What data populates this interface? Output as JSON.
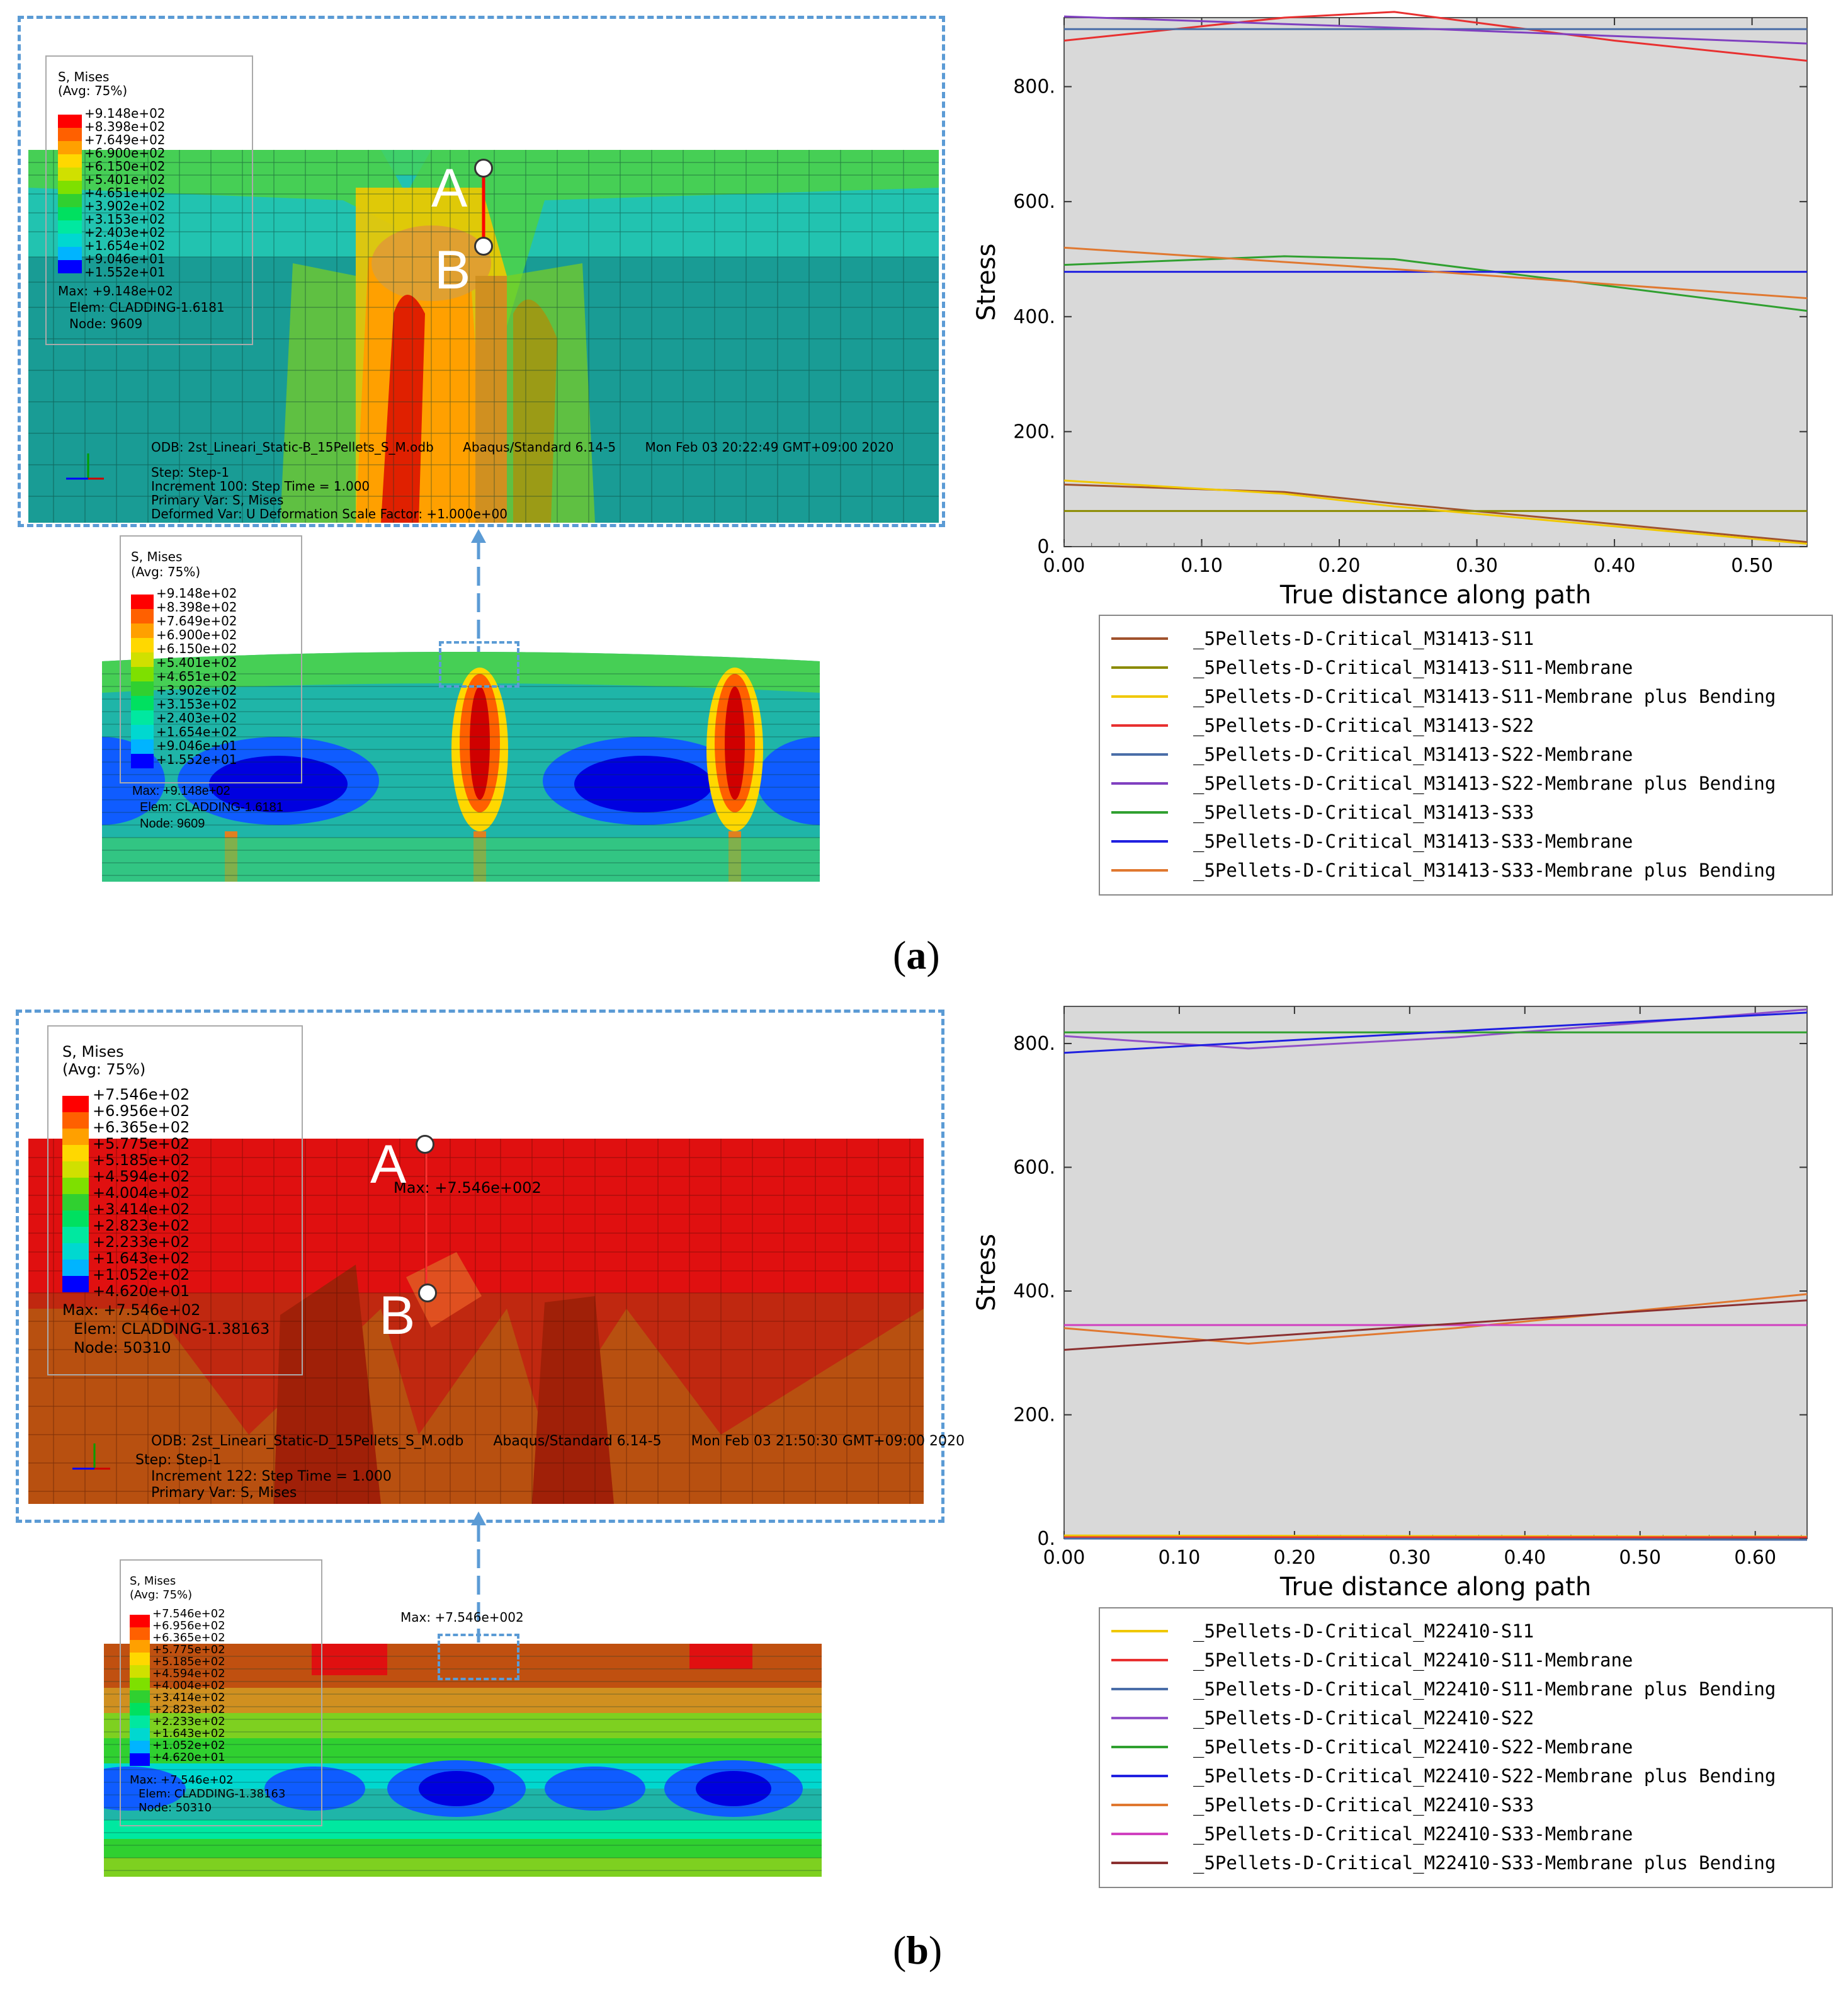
{
  "colors": {
    "contour": [
      "#0000ff",
      "#0f5cff",
      "#00b4ff",
      "#00d8d0",
      "#00e8a0",
      "#00e060",
      "#30d030",
      "#7ee000",
      "#d0e000",
      "#ffd800",
      "#ffa000",
      "#ff6000",
      "#ff0000"
    ],
    "dashed": "#5b9bd5",
    "plotbg": "#d9d9d9"
  },
  "panel_a": {
    "label": "(a)",
    "legend": {
      "title": "S, Mises",
      "avg": "(Avg: 75%)",
      "values": [
        "+9.148e+02",
        "+8.398e+02",
        "+7.649e+02",
        "+6.900e+02",
        "+6.150e+02",
        "+5.401e+02",
        "+4.651e+02",
        "+3.902e+02",
        "+3.153e+02",
        "+2.403e+02",
        "+1.654e+02",
        "+9.046e+01",
        "+1.552e+01"
      ],
      "max": "Max: +9.148e+02",
      "elem": "Elem: CLADDING-1.6181",
      "node": "Node: 9609"
    },
    "odb": {
      "line1": "ODB: 2st_Lineari_Static-B_15Pellets_S_M.odb",
      "line1b": "Abaqus/Standard 6.14-5",
      "line1c": "Mon Feb 03 20:22:49 GMT+09:00 2020",
      "step": "Step: Step-1",
      "increment": "Increment    100: Step Time =     1.000",
      "primary": "Primary Var: S, Mises",
      "deformed": "Deformed Var: U   Deformation Scale Factor: +1.000e+00"
    },
    "point_a": "A",
    "point_b": "B",
    "chart_data": {
      "type": "line",
      "xlabel": "True distance along path",
      "ylabel": "Stress",
      "xlim": [
        0,
        0.54
      ],
      "ylim": [
        0,
        920
      ],
      "xticks": [
        "0.00",
        "0.10",
        "0.20",
        "0.30",
        "0.40",
        "0.50"
      ],
      "yticks": [
        "0.",
        "200.",
        "400.",
        "600.",
        "800."
      ],
      "series": [
        {
          "name": "_5Pellets-D-Critical_M31413-S11",
          "color": "#a0522d",
          "x": [
            0,
            0.16,
            0.24,
            0.54
          ],
          "y": [
            108,
            95,
            75,
            8
          ]
        },
        {
          "name": "_5Pellets-D-Critical_M31413-S11-Membrane",
          "color": "#8b8b00",
          "x": [
            0,
            0.54
          ],
          "y": [
            62,
            62
          ]
        },
        {
          "name": "_5Pellets-D-Critical_M31413-S11-Membrane plus Bending",
          "color": "#f0c800",
          "x": [
            0,
            0.16,
            0.24,
            0.54
          ],
          "y": [
            115,
            92,
            70,
            5
          ]
        },
        {
          "name": "_5Pellets-D-Critical_M31413-S22",
          "color": "#e83030",
          "x": [
            0,
            0.16,
            0.24,
            0.4,
            0.54
          ],
          "y": [
            880,
            920,
            930,
            880,
            845
          ]
        },
        {
          "name": "_5Pellets-D-Critical_M31413-S22-Membrane",
          "color": "#4a6ea8",
          "x": [
            0,
            0.54
          ],
          "y": [
            900,
            900
          ]
        },
        {
          "name": "_5Pellets-D-Critical_M31413-S22-Membrane plus Bending",
          "color": "#8040c0",
          "x": [
            0,
            0.27,
            0.54
          ],
          "y": [
            922,
            900,
            875
          ]
        },
        {
          "name": "_5Pellets-D-Critical_M31413-S33",
          "color": "#30a030",
          "x": [
            0,
            0.16,
            0.24,
            0.54
          ],
          "y": [
            490,
            505,
            500,
            410
          ]
        },
        {
          "name": "_5Pellets-D-Critical_M31413-S33-Membrane",
          "color": "#2020e0",
          "x": [
            0,
            0.54
          ],
          "y": [
            478,
            478
          ]
        },
        {
          "name": "_5Pellets-D-Critical_M31413-S33-Membrane plus Bending",
          "color": "#e07830",
          "x": [
            0,
            0.27,
            0.54
          ],
          "y": [
            520,
            478,
            432
          ]
        }
      ]
    }
  },
  "panel_b": {
    "label": "(b)",
    "legend": {
      "title": "S, Mises",
      "avg": "(Avg: 75%)",
      "values": [
        "+7.546e+02",
        "+6.956e+02",
        "+6.365e+02",
        "+5.775e+02",
        "+5.185e+02",
        "+4.594e+02",
        "+4.004e+02",
        "+3.414e+02",
        "+2.823e+02",
        "+2.233e+02",
        "+1.643e+02",
        "+1.052e+02",
        "+4.620e+01"
      ],
      "max": "Max: +7.546e+02",
      "elem": "Elem: CLADDING-1.38163",
      "node": "Node: 50310"
    },
    "odb": {
      "line1": "ODB: 2st_Lineari_Static-D_15Pellets_S_M.odb",
      "line1b": "Abaqus/Standard 6.14-5",
      "line1c": "Mon Feb 03 21:50:30 GMT+09:00 2020",
      "step": "Step: Step-1",
      "increment": "Increment    122: Step Time =     1.000",
      "primary": "Primary Var: S, Mises"
    },
    "max_label": "Max: +7.546e+002",
    "point_a": "A",
    "point_b": "B",
    "chart_data": {
      "type": "line",
      "xlabel": "True distance along path",
      "ylabel": "Stress",
      "xlim": [
        0,
        0.645
      ],
      "ylim": [
        0,
        860
      ],
      "xticks": [
        "0.00",
        "0.10",
        "0.20",
        "0.30",
        "0.40",
        "0.50",
        "0.60"
      ],
      "yticks": [
        "0.",
        "200.",
        "400.",
        "600.",
        "800."
      ],
      "series": [
        {
          "name": "_5Pellets-D-Critical_M22410-S11",
          "color": "#f0c800",
          "x": [
            0,
            0.645
          ],
          "y": [
            5,
            3
          ]
        },
        {
          "name": "_5Pellets-D-Critical_M22410-S11-Membrane",
          "color": "#e83030",
          "x": [
            0,
            0.645
          ],
          "y": [
            2,
            2
          ]
        },
        {
          "name": "_5Pellets-D-Critical_M22410-S11-Membrane plus Bending",
          "color": "#4a6ea8",
          "x": [
            0,
            0.645
          ],
          "y": [
            0,
            -2
          ]
        },
        {
          "name": "_5Pellets-D-Critical_M22410-S22",
          "color": "#9050c8",
          "x": [
            0,
            0.16,
            0.34,
            0.645
          ],
          "y": [
            812,
            792,
            810,
            855
          ]
        },
        {
          "name": "_5Pellets-D-Critical_M22410-S22-Membrane",
          "color": "#30a030",
          "x": [
            0,
            0.645
          ],
          "y": [
            818,
            818
          ]
        },
        {
          "name": "_5Pellets-D-Critical_M22410-S22-Membrane plus Bending",
          "color": "#2020e0",
          "x": [
            0,
            0.32,
            0.645
          ],
          "y": [
            785,
            818,
            850
          ]
        },
        {
          "name": "_5Pellets-D-Critical_M22410-S33",
          "color": "#e07830",
          "x": [
            0,
            0.16,
            0.34,
            0.645
          ],
          "y": [
            340,
            315,
            340,
            395
          ]
        },
        {
          "name": "_5Pellets-D-Critical_M22410-S33-Membrane",
          "color": "#d040c0",
          "x": [
            0,
            0.645
          ],
          "y": [
            345,
            345
          ]
        },
        {
          "name": "_5Pellets-D-Critical_M22410-S33-Membrane plus Bending",
          "color": "#8b3030",
          "x": [
            0,
            0.32,
            0.645
          ],
          "y": [
            305,
            345,
            385
          ]
        }
      ]
    }
  }
}
